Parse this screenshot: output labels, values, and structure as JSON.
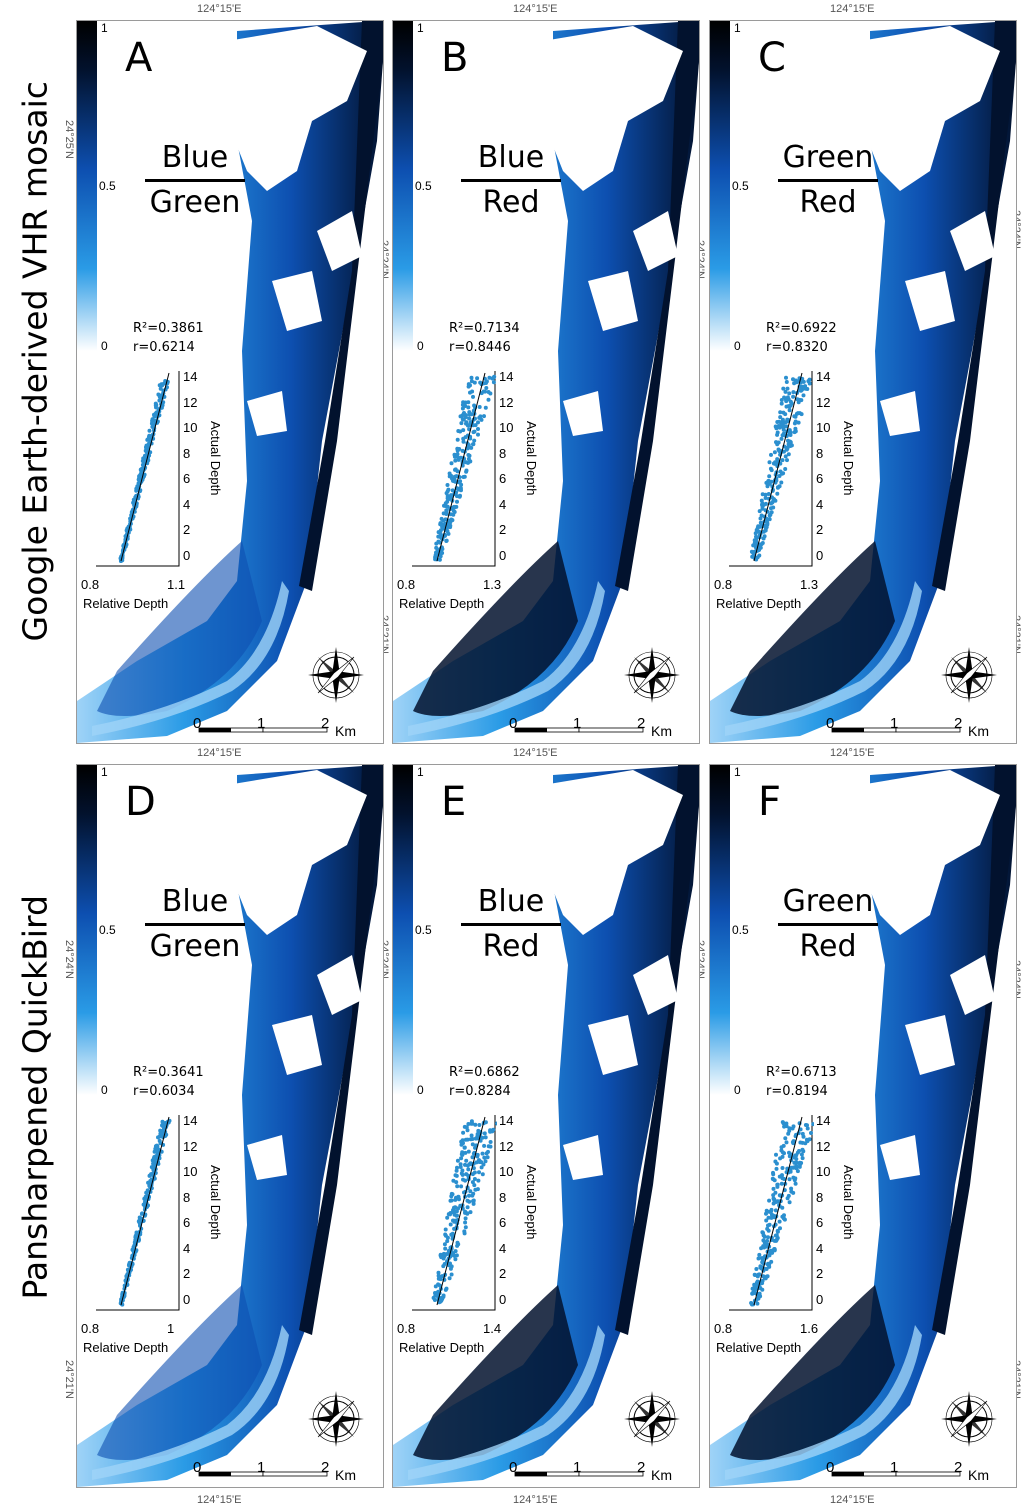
{
  "row_labels": [
    "Google Earth-derived VHR mosaic",
    "Pansharpened QuickBird"
  ],
  "colorbar": {
    "max_label": "1",
    "mid_label": "0.5",
    "min_label": "0"
  },
  "coords": {
    "lon_top": "124°15'E",
    "lon_bottom": "124°15'E",
    "lat_a_top": "24°25'N",
    "lat_mid": "24°24'N",
    "lat_low": "24°21'N"
  },
  "scale_bar": {
    "labels": [
      "0",
      "1",
      "2"
    ],
    "unit": "Km"
  },
  "compass_labels": [
    "N",
    "NE",
    "E",
    "SE",
    "S",
    "SW",
    "W",
    "NW"
  ],
  "panels": [
    {
      "letter": "A",
      "numerator": "Blue",
      "denominator": "Green",
      "r2": "R²=0.3861",
      "r": "r=0.6214",
      "xmin": "0.8",
      "xmax": "1.1",
      "xlabel": "Relative Depth",
      "ylabel": "Actual Depth",
      "yticks": [
        "14",
        "12",
        "10",
        "8",
        "6",
        "4",
        "2",
        "0"
      ]
    },
    {
      "letter": "B",
      "numerator": "Blue",
      "denominator": "Red",
      "r2": "R²=0.7134",
      "r": "r=0.8446",
      "xmin": "0.8",
      "xmax": "1.3",
      "xlabel": "Relative Depth",
      "ylabel": "Actual Depth",
      "yticks": [
        "14",
        "12",
        "10",
        "8",
        "6",
        "4",
        "2",
        "0"
      ]
    },
    {
      "letter": "C",
      "numerator": "Green",
      "denominator": "Red",
      "r2": "R²=0.6922",
      "r": "r=0.8320",
      "xmin": "0.8",
      "xmax": "1.3",
      "xlabel": "Relative Depth",
      "ylabel": "Actual Depth",
      "yticks": [
        "14",
        "12",
        "10",
        "8",
        "6",
        "4",
        "2",
        "0"
      ]
    },
    {
      "letter": "D",
      "numerator": "Blue",
      "denominator": "Green",
      "r2": "R²=0.3641",
      "r": "r=0.6034",
      "xmin": "0.8",
      "xmax": "1",
      "xlabel": "Relative Depth",
      "ylabel": "Actual Depth",
      "yticks": [
        "14",
        "12",
        "10",
        "8",
        "6",
        "4",
        "2",
        "0"
      ]
    },
    {
      "letter": "E",
      "numerator": "Blue",
      "denominator": "Red",
      "r2": "R²=0.6862",
      "r": "r=0.8284",
      "xmin": "0.8",
      "xmax": "1.4",
      "xlabel": "Relative Depth",
      "ylabel": "Actual Depth",
      "yticks": [
        "14",
        "12",
        "10",
        "8",
        "6",
        "4",
        "2",
        "0"
      ]
    },
    {
      "letter": "F",
      "numerator": "Green",
      "denominator": "Red",
      "r2": "R²=0.6713",
      "r": "r=0.8194",
      "xmin": "0.8",
      "xmax": "1.6",
      "xlabel": "Relative Depth",
      "ylabel": "Actual Depth",
      "yticks": [
        "14",
        "12",
        "10",
        "8",
        "6",
        "4",
        "2",
        "0"
      ]
    }
  ],
  "colors": {
    "deep": "#02122e",
    "mid": "#0d4fb0",
    "shallow": "#2a9be6",
    "pale": "#9fd3f7",
    "scatter_point": "#2b8fcf"
  }
}
